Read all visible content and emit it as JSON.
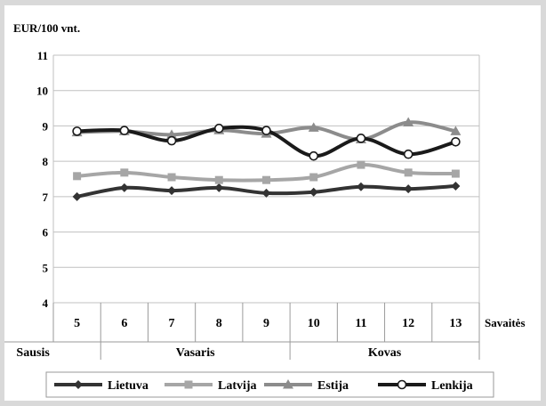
{
  "chart_data": {
    "type": "line",
    "ylabel": "EUR/100 vnt.",
    "xlabel": "Savaitės",
    "ylim": [
      4,
      11
    ],
    "yticks": [
      4,
      5,
      6,
      7,
      8,
      9,
      10,
      11
    ],
    "categories": [
      "5",
      "6",
      "7",
      "8",
      "9",
      "10",
      "11",
      "12",
      "13"
    ],
    "groups": [
      {
        "label": "Sausis",
        "from": 0,
        "to": 0
      },
      {
        "label": "Vasaris",
        "from": 1,
        "to": 4
      },
      {
        "label": "Kovas",
        "from": 5,
        "to": 8
      }
    ],
    "grid": true,
    "legend_position": "bottom",
    "series": [
      {
        "name": "Lietuva",
        "marker": "diamond",
        "color": "#333333",
        "values": [
          7.0,
          7.25,
          7.17,
          7.25,
          7.1,
          7.13,
          7.28,
          7.22,
          7.3
        ]
      },
      {
        "name": "Latvija",
        "marker": "square",
        "color": "#a6a6a6",
        "values": [
          7.58,
          7.68,
          7.55,
          7.47,
          7.47,
          7.55,
          7.9,
          7.68,
          7.65
        ]
      },
      {
        "name": "Estija",
        "marker": "triangle",
        "color": "#8c8c8c",
        "values": [
          8.82,
          8.85,
          8.75,
          8.88,
          8.78,
          8.95,
          8.62,
          9.1,
          8.85
        ]
      },
      {
        "name": "Lenkija",
        "marker": "circle",
        "color": "#1a1a1a",
        "values": [
          8.85,
          8.87,
          8.58,
          8.93,
          8.87,
          8.15,
          8.65,
          8.2,
          8.55
        ]
      }
    ]
  }
}
